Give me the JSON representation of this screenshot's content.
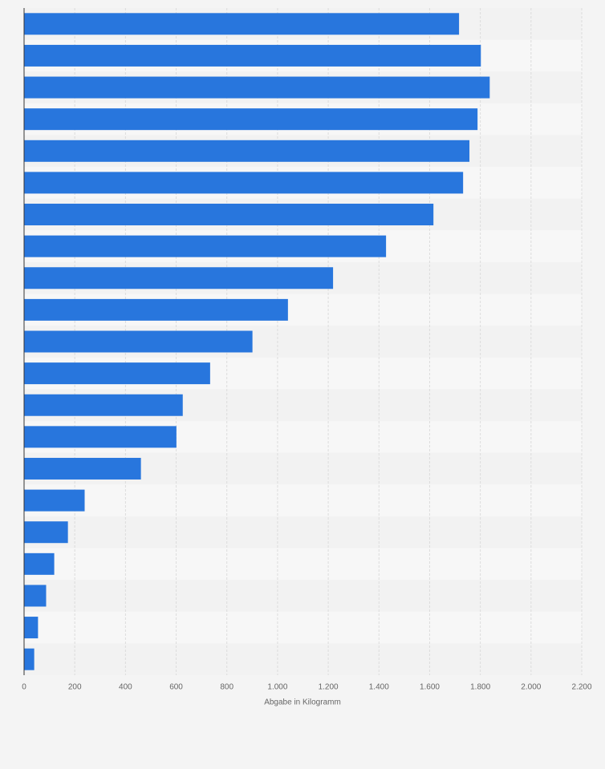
{
  "chart_data": {
    "type": "barh",
    "categories": [
      null,
      null,
      null,
      null,
      null,
      null,
      null,
      null,
      null,
      null,
      null,
      null,
      null,
      null,
      null,
      null,
      null,
      null,
      null,
      null,
      null
    ],
    "values": [
      1716,
      1802,
      1837,
      1789,
      1757,
      1732,
      1615,
      1428,
      1219,
      1041,
      901,
      734,
      626,
      601,
      461,
      239,
      173,
      119,
      87,
      55,
      40
    ],
    "color": "#2876dd",
    "xlabel": "Abgabe in Kilogramm",
    "xlim": [
      0,
      2200
    ],
    "xticks": [
      0,
      200,
      400,
      600,
      800,
      {
        "value": 1000,
        "label": "1.000"
      },
      {
        "value": 1200,
        "label": "1.200"
      },
      {
        "value": 1400,
        "label": "1.400"
      },
      {
        "value": 1600,
        "label": "1.600"
      },
      {
        "value": 1800,
        "label": "1.800"
      },
      {
        "value": 2000,
        "label": "2.000"
      },
      {
        "value": 2200,
        "label": "2.200"
      }
    ],
    "grid": true
  }
}
